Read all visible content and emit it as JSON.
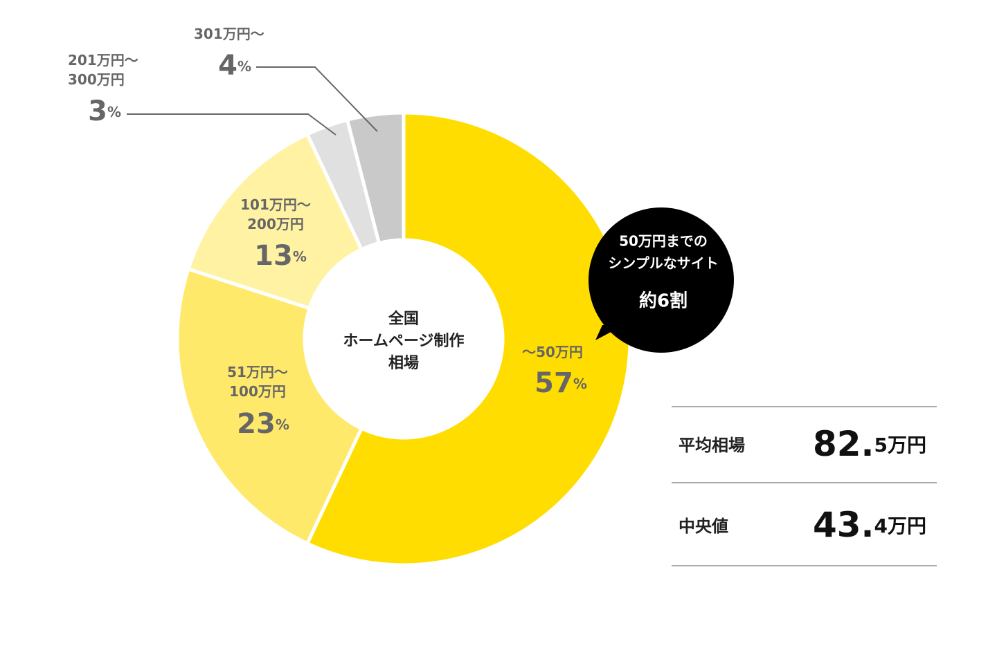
{
  "chart_data": {
    "type": "pie",
    "donut": true,
    "center_label": "全国\nホームページ制作\n相場",
    "categories": [
      "〜50万円",
      "51万円〜\n100万円",
      "101万円〜\n200万円",
      "201万円〜\n300万円",
      "301万円〜"
    ],
    "values": [
      57,
      23,
      13,
      3,
      4
    ],
    "value_labels": [
      "57%",
      "23%",
      "13%",
      "3%",
      "4%"
    ],
    "colors": [
      "#ffdd00",
      "#ffe96b",
      "#fff3a3",
      "#e0e0e0",
      "#c9c9c9"
    ]
  },
  "callout": {
    "lines": [
      "50万円までの",
      "シンプルなサイト"
    ],
    "highlight": "約6割"
  },
  "stats": [
    {
      "label": "平均相場",
      "value": "82.5万円"
    },
    {
      "label": "中央値",
      "value": "43.4万円"
    }
  ]
}
